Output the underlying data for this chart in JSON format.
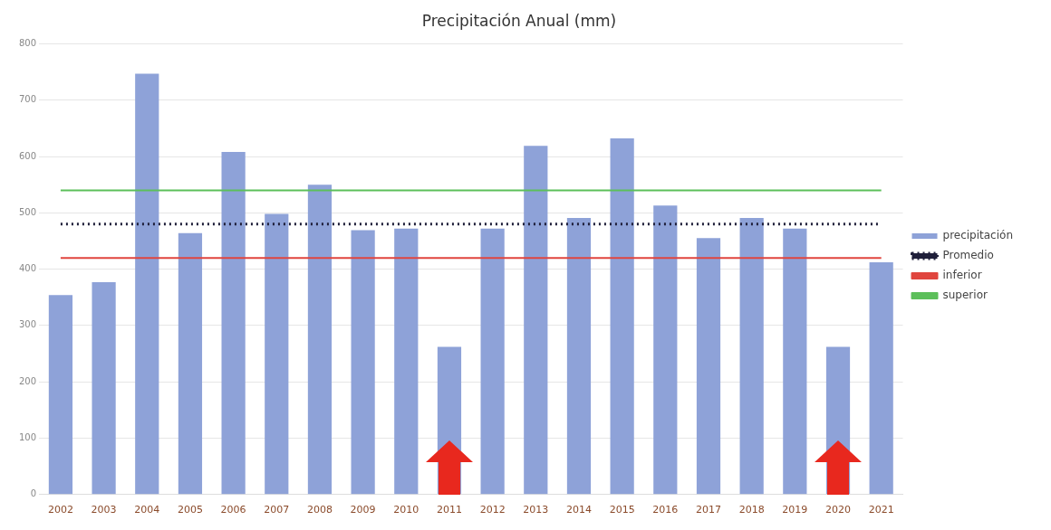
{
  "chart_data": {
    "type": "bar",
    "title": "Precipitación Anual (mm)",
    "categories": [
      "2002",
      "2003",
      "2004",
      "2005",
      "2006",
      "2007",
      "2008",
      "2009",
      "2010",
      "2011",
      "2012",
      "2013",
      "2014",
      "2015",
      "2016",
      "2017",
      "2018",
      "2019",
      "2020",
      "2021"
    ],
    "series": [
      {
        "name": "precipitación",
        "color": "#8ea2d8",
        "values": [
          354,
          377,
          747,
          464,
          608,
          498,
          550,
          469,
          472,
          262,
          472,
          619,
          491,
          632,
          513,
          455,
          491,
          472,
          262,
          412
        ]
      },
      {
        "name": "Promedio",
        "type": "line",
        "color": "#1f1f3a",
        "line_style": "dotted",
        "values": [
          480,
          480,
          480,
          480,
          480,
          480,
          480,
          480,
          480,
          480,
          480,
          480,
          480,
          480,
          480,
          480,
          480,
          480,
          480,
          480
        ]
      },
      {
        "name": "inferior",
        "type": "line",
        "color": "#e0453e",
        "line_style": "solid",
        "values": [
          420,
          420,
          420,
          420,
          420,
          420,
          420,
          420,
          420,
          420,
          420,
          420,
          420,
          420,
          420,
          420,
          420,
          420,
          420,
          420
        ]
      },
      {
        "name": "superior",
        "type": "line",
        "color": "#5cbf5a",
        "line_style": "solid",
        "values": [
          540,
          540,
          540,
          540,
          540,
          540,
          540,
          540,
          540,
          540,
          540,
          540,
          540,
          540,
          540,
          540,
          540,
          540,
          540,
          540
        ]
      }
    ],
    "ylim": [
      0,
      800
    ],
    "yticks": [
      0,
      100,
      200,
      300,
      400,
      500,
      600,
      700,
      800
    ],
    "grid": "y",
    "legend": "right",
    "marker": "none"
  }
}
